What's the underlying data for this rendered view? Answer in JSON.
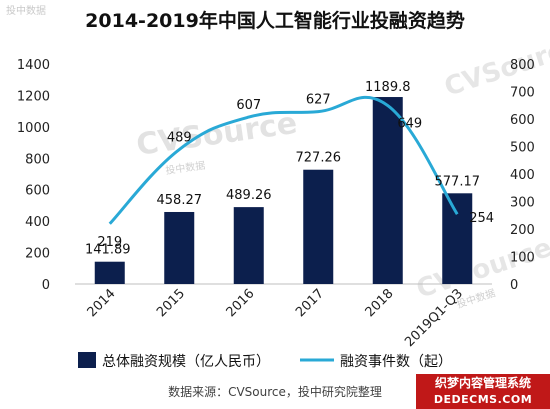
{
  "chart_data": {
    "type": "bar",
    "title": "2014-2019年中国人工智能行业投融资趋势",
    "categories": [
      "2014",
      "2015",
      "2016",
      "2017",
      "2018",
      "2019Q1-Q3"
    ],
    "series": [
      {
        "name": "总体融资规模（亿人民币）",
        "type": "bar",
        "axis": "left",
        "values": [
          141.89,
          458.27,
          489.26,
          727.26,
          1189.8,
          577.17
        ]
      },
      {
        "name": "融资事件数（起）",
        "type": "line",
        "axis": "right",
        "values": [
          219,
          489,
          607,
          627,
          649,
          254
        ]
      }
    ],
    "y_left": {
      "ticks": [
        0,
        200,
        400,
        600,
        800,
        1000,
        1200,
        1400
      ],
      "ylim": [
        0,
        1400
      ]
    },
    "y_right": {
      "ticks": [
        0,
        100,
        200,
        300,
        400,
        500,
        600,
        700,
        800
      ],
      "ylim": [
        0,
        800
      ]
    },
    "grid": false,
    "legend_position": "bottom",
    "colors": {
      "bar": "#0c1f4d",
      "line": "#29a9d6"
    }
  },
  "footer": {
    "source": "数据来源：CVSource，投中研究院整理"
  },
  "watermarks": {
    "logo": "CVSource",
    "sub": "投中数据"
  },
  "badge": {
    "line1": "织梦内容管理系统",
    "line2": "DEDECMS.COM"
  }
}
